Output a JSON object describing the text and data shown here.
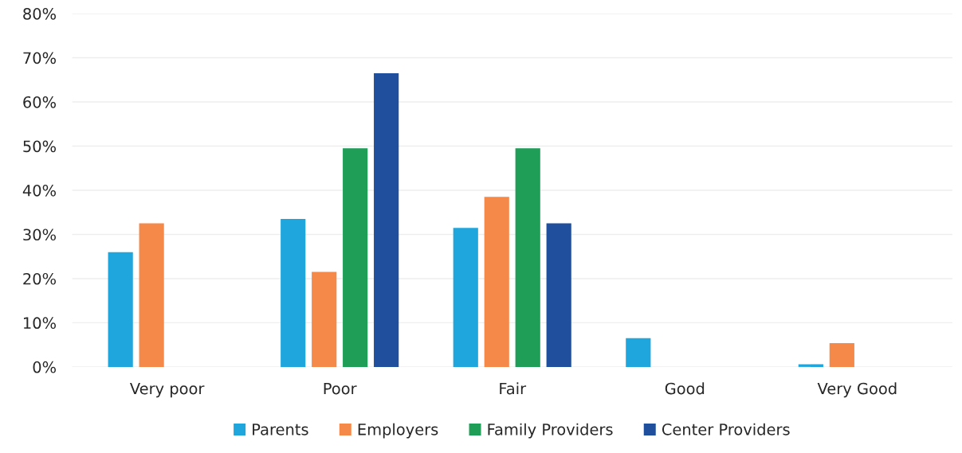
{
  "chart_data": {
    "type": "bar",
    "categories": [
      "Very poor",
      "Poor",
      "Fair",
      "Good",
      "Very Good"
    ],
    "series": [
      {
        "name": "Parents",
        "color": "#1fa6dc",
        "values": [
          26,
          33.5,
          31.5,
          6.5,
          0.6
        ]
      },
      {
        "name": "Employers",
        "color": "#f5894a",
        "values": [
          32.5,
          21.5,
          38.5,
          null,
          5.4
        ]
      },
      {
        "name": "Family Providers",
        "color": "#1e9e57",
        "values": [
          null,
          49.5,
          49.5,
          null,
          null
        ]
      },
      {
        "name": "Center Providers",
        "color": "#1f4f9d",
        "values": [
          null,
          66.5,
          32.5,
          null,
          null
        ]
      }
    ],
    "ylim": [
      0,
      80
    ],
    "yticks": [
      {
        "value": 0,
        "label": "0%"
      },
      {
        "value": 10,
        "label": "10%"
      },
      {
        "value": 20,
        "label": "20%"
      },
      {
        "value": 30,
        "label": "30%"
      },
      {
        "value": 40,
        "label": "40%"
      },
      {
        "value": 50,
        "label": "50%"
      },
      {
        "value": 60,
        "label": "60%"
      },
      {
        "value": 70,
        "label": "70%"
      },
      {
        "value": 80,
        "label": "80%"
      }
    ],
    "grid": "y",
    "legend": "bottom"
  }
}
